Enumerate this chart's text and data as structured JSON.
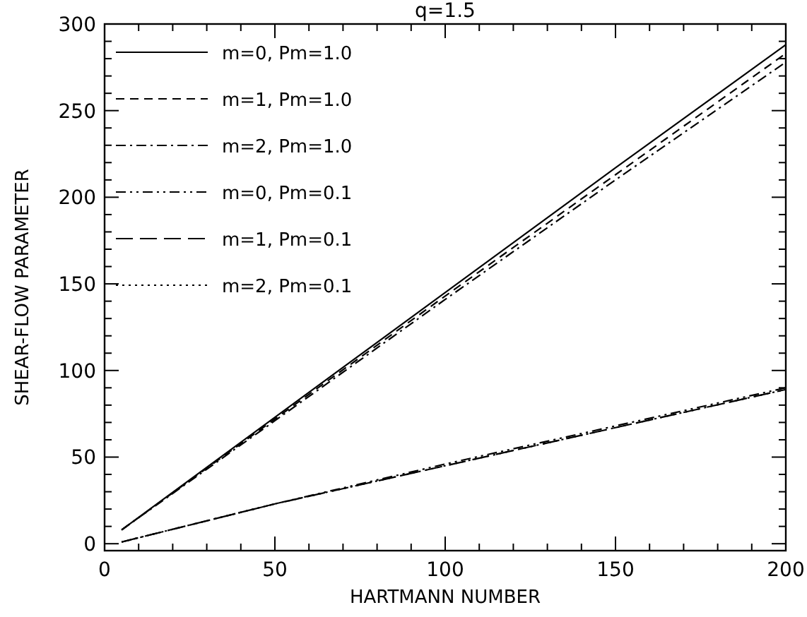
{
  "chart_data": {
    "type": "line",
    "title": "q=1.5",
    "xlabel": "HARTMANN NUMBER",
    "ylabel": "SHEAR-FLOW PARAMETER",
    "xlim": [
      0,
      200
    ],
    "ylim": [
      -4,
      300
    ],
    "xticks": [
      0,
      50,
      100,
      150,
      200
    ],
    "yticks": [
      0,
      50,
      100,
      150,
      200,
      250,
      300
    ],
    "legend": "top left",
    "grid": false,
    "marker": "none",
    "series": [
      {
        "name": "m=0, Pm=1.0",
        "color": "#000000",
        "line_style": "solid",
        "x": [
          5,
          50,
          100,
          150,
          200
        ],
        "values": [
          8,
          73,
          145,
          217,
          288
        ]
      },
      {
        "name": "m=1, Pm=1.0",
        "color": "#000000",
        "line_style": "dashed",
        "x": [
          5,
          50,
          100,
          150,
          200
        ],
        "values": [
          8,
          72,
          143,
          213,
          283
        ]
      },
      {
        "name": "m=2, Pm=1.0",
        "color": "#000000",
        "line_style": "dashdot",
        "x": [
          5,
          50,
          100,
          150,
          200
        ],
        "values": [
          8,
          71,
          141,
          210,
          278
        ]
      },
      {
        "name": "m=0, Pm=0.1",
        "color": "#000000",
        "line_style": "dashdotdot",
        "x": [
          5,
          50,
          100,
          150,
          200
        ],
        "values": [
          1,
          23,
          46,
          68,
          90
        ]
      },
      {
        "name": "m=1, Pm=0.1",
        "color": "#000000",
        "line_style": "longdash",
        "x": [
          5,
          50,
          100,
          150,
          200
        ],
        "values": [
          1,
          23,
          45,
          67,
          89
        ]
      },
      {
        "name": "m=2, Pm=0.1",
        "color": "#000000",
        "line_style": "dotted",
        "x": [
          5,
          50,
          100,
          150,
          200
        ],
        "values": [
          1,
          23,
          45,
          67,
          89
        ]
      }
    ]
  }
}
